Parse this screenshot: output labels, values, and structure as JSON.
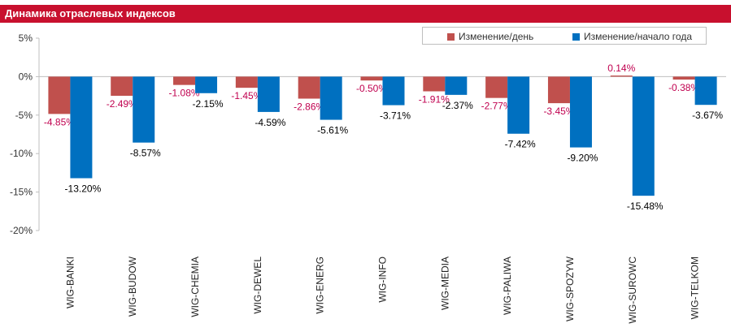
{
  "header": {
    "title": "Динамика отраслевых индексов"
  },
  "colors": {
    "title_bg": "#c8102e",
    "daily": "#c0504d",
    "ytd": "#0070c0",
    "daily_label": "#c0004f",
    "ytd_label": "#000000"
  },
  "legend": {
    "placement": "top-right",
    "items": [
      "Изменение/день",
      "Изменение/начало года"
    ]
  },
  "chart_data": {
    "type": "bar",
    "title": "Динамика отраслевых индексов",
    "xlabel": "",
    "ylabel": "",
    "ylim": [
      -20,
      5
    ],
    "yticks": [
      "5%",
      "0%",
      "-5%",
      "-10%",
      "-15%",
      "-20%"
    ],
    "grid": false,
    "categories": [
      "WIG-BANKI",
      "WIG-BUDOW",
      "WIG-CHEMIA",
      "WIG-DEWEL",
      "WIG-ENERG",
      "WIG-INFO",
      "WIG-MEDIA",
      "WIG-PALIWA",
      "WIG-SPOZYW",
      "WIG-SUROWC",
      "WIG-TELKOM"
    ],
    "series": [
      {
        "name": "Изменение/день",
        "values": [
          -4.85,
          -2.49,
          -1.08,
          -1.45,
          -2.86,
          -0.5,
          -1.91,
          -2.77,
          -3.45,
          0.14,
          -0.38
        ],
        "labels": [
          "-4.85%",
          "-2.49%",
          "-1.08%",
          "-1.45%",
          "-2.86%",
          "-0.50%",
          "-1.91%",
          "-2.77%",
          "-3.45%",
          "0.14%",
          "-0.38%"
        ]
      },
      {
        "name": "Изменение/начало года",
        "values": [
          -13.2,
          -8.57,
          -2.15,
          -4.59,
          -5.61,
          -3.71,
          -2.37,
          -7.42,
          -9.2,
          -15.48,
          -3.67
        ],
        "labels": [
          "-13.20%",
          "-8.57%",
          "-2.15%",
          "-4.59%",
          "-5.61%",
          "-3.71%",
          "-2.37%",
          "-7.42%",
          "-9.20%",
          "-15.48%",
          "-3.67%"
        ]
      }
    ]
  }
}
